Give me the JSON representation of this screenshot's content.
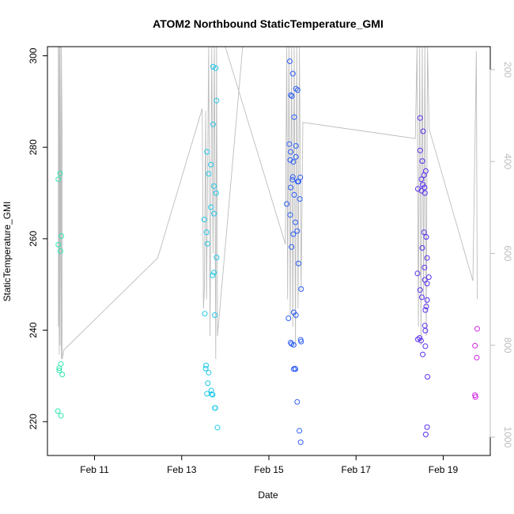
{
  "chart_data": {
    "type": "scatter",
    "title": "ATOM2 Northbound StaticTemperature_GMI",
    "xlabel": "Date",
    "ylabel": "StaticTemperature_GMI",
    "x_units": "days since 2016-02-10",
    "xlim": [
      -0.08,
      10.08
    ],
    "ylim": [
      212.6,
      302.0
    ],
    "y2lim": [
      1040,
      150
    ],
    "x_tick_labels": [
      "Feb 11",
      "Feb 13",
      "Feb 15",
      "Feb 17",
      "Feb 19"
    ],
    "y_tick_values": [
      220,
      240,
      260,
      280,
      300
    ],
    "y2_tick_values": [
      200,
      400,
      600,
      800,
      1000
    ],
    "grid": false,
    "legend": "none",
    "colors": {
      "axis": "#000000",
      "secondary_axis": "#bdbdbd",
      "pressure_line": "#bdbdbd"
    },
    "series": [
      {
        "color": "#2ee6b0",
        "points": [
          [
            0.17,
            273.0
          ],
          [
            0.21,
            274.3
          ],
          [
            0.17,
            258.7
          ],
          [
            0.22,
            257.3
          ],
          [
            0.24,
            260.6
          ],
          [
            0.19,
            231.7
          ],
          [
            0.19,
            231.2
          ],
          [
            0.23,
            232.6
          ],
          [
            0.26,
            230.3
          ],
          [
            0.16,
            222.3
          ],
          [
            0.23,
            221.3
          ]
        ]
      },
      {
        "color": "#1ec8e8",
        "points": [
          [
            3.72,
            297.6
          ],
          [
            3.78,
            297.3
          ],
          [
            3.72,
            285.0
          ],
          [
            3.8,
            290.2
          ],
          [
            3.58,
            279.0
          ],
          [
            3.62,
            274.2
          ],
          [
            3.67,
            276.2
          ],
          [
            3.74,
            271.5
          ],
          [
            3.79,
            270.0
          ],
          [
            3.67,
            266.9
          ],
          [
            3.74,
            265.5
          ],
          [
            3.52,
            264.2
          ],
          [
            3.57,
            261.4
          ],
          [
            3.59,
            258.9
          ],
          [
            3.8,
            255.9
          ],
          [
            3.71,
            252.0
          ],
          [
            3.74,
            252.6
          ],
          [
            3.53,
            243.6
          ],
          [
            3.76,
            243.3
          ],
          [
            3.56,
            232.3
          ],
          [
            3.55,
            231.6
          ],
          [
            3.62,
            230.7
          ],
          [
            3.6,
            228.4
          ],
          [
            3.58,
            226.1
          ],
          [
            3.68,
            226.8
          ],
          [
            3.71,
            225.9
          ],
          [
            3.69,
            226.0
          ],
          [
            3.77,
            223.0
          ],
          [
            3.76,
            223.0
          ],
          [
            3.82,
            218.7
          ]
        ]
      },
      {
        "color": "#2d5ef5",
        "points": [
          [
            5.48,
            298.8
          ],
          [
            5.55,
            296.1
          ],
          [
            5.66,
            292.5
          ],
          [
            5.62,
            292.8
          ],
          [
            5.5,
            291.4
          ],
          [
            5.53,
            291.2
          ],
          [
            5.58,
            286.6
          ],
          [
            5.47,
            280.7
          ],
          [
            5.62,
            280.3
          ],
          [
            5.5,
            279.0
          ],
          [
            5.56,
            276.8
          ],
          [
            5.49,
            277.2
          ],
          [
            5.62,
            277.9
          ],
          [
            5.55,
            273.5
          ],
          [
            5.54,
            272.9
          ],
          [
            5.66,
            272.5
          ],
          [
            5.68,
            272.5
          ],
          [
            5.72,
            273.4
          ],
          [
            5.5,
            271.2
          ],
          [
            5.58,
            269.6
          ],
          [
            5.71,
            268.7
          ],
          [
            5.41,
            267.6
          ],
          [
            5.49,
            265.2
          ],
          [
            5.61,
            263.6
          ],
          [
            5.65,
            261.7
          ],
          [
            5.56,
            261.0
          ],
          [
            5.52,
            258.2
          ],
          [
            5.68,
            254.6
          ],
          [
            5.74,
            249.0
          ],
          [
            5.57,
            243.9
          ],
          [
            5.62,
            243.3
          ],
          [
            5.45,
            242.6
          ],
          [
            5.5,
            237.3
          ],
          [
            5.52,
            237.0
          ],
          [
            5.57,
            236.8
          ],
          [
            5.73,
            237.9
          ],
          [
            5.74,
            237.5
          ],
          [
            5.57,
            231.5
          ],
          [
            5.61,
            231.5
          ],
          [
            5.6,
            231.6
          ],
          [
            5.65,
            224.3
          ],
          [
            5.7,
            218.0
          ],
          [
            5.73,
            215.5
          ]
        ]
      },
      {
        "color": "#5a2ef0",
        "points": [
          [
            8.47,
            286.4
          ],
          [
            8.54,
            283.5
          ],
          [
            8.47,
            279.3
          ],
          [
            8.52,
            277.0
          ],
          [
            8.6,
            274.8
          ],
          [
            8.56,
            273.9
          ],
          [
            8.5,
            273.0
          ],
          [
            8.53,
            271.8
          ],
          [
            8.57,
            271.2
          ],
          [
            8.42,
            270.9
          ],
          [
            8.5,
            270.5
          ],
          [
            8.58,
            270.0
          ],
          [
            8.56,
            261.4
          ],
          [
            8.61,
            260.4
          ],
          [
            8.52,
            258.0
          ],
          [
            8.63,
            255.8
          ],
          [
            8.57,
            253.7
          ],
          [
            8.41,
            252.4
          ],
          [
            8.67,
            251.6
          ],
          [
            8.58,
            251.0
          ],
          [
            8.63,
            250.2
          ],
          [
            8.47,
            248.8
          ],
          [
            8.51,
            247.2
          ],
          [
            8.63,
            246.6
          ],
          [
            8.61,
            245.2
          ],
          [
            8.59,
            244.4
          ],
          [
            8.58,
            241.0
          ],
          [
            8.59,
            239.9
          ],
          [
            8.42,
            238.0
          ],
          [
            8.46,
            238.3
          ],
          [
            8.49,
            237.7
          ],
          [
            8.59,
            236.5
          ],
          [
            8.53,
            234.7
          ],
          [
            8.64,
            229.8
          ],
          [
            8.63,
            218.8
          ],
          [
            8.6,
            217.2
          ]
        ]
      },
      {
        "color": "#d020e6",
        "points": [
          [
            9.78,
            240.3
          ],
          [
            9.73,
            236.6
          ],
          [
            9.77,
            234.0
          ],
          [
            9.73,
            225.8
          ],
          [
            9.74,
            225.4
          ]
        ]
      }
    ],
    "pressure_line": [
      [
        0.17,
        760
      ],
      [
        0.17,
        150
      ],
      [
        0.19,
        820
      ],
      [
        0.19,
        150
      ],
      [
        0.21,
        800
      ],
      [
        0.21,
        150
      ],
      [
        0.24,
        830
      ],
      [
        0.24,
        150
      ],
      [
        0.26,
        370
      ],
      [
        0.26,
        830
      ],
      [
        0.3,
        810
      ],
      [
        2.45,
        610
      ],
      [
        3.47,
        285
      ],
      [
        3.5,
        720
      ],
      [
        3.52,
        680
      ],
      [
        3.55,
        290
      ],
      [
        3.57,
        700
      ],
      [
        3.62,
        150
      ],
      [
        3.65,
        780
      ],
      [
        3.69,
        150
      ],
      [
        3.72,
        600
      ],
      [
        3.75,
        150
      ],
      [
        3.78,
        830
      ],
      [
        3.8,
        150
      ],
      [
        3.82,
        780
      ],
      [
        4.4,
        150
      ],
      [
        4.0,
        150
      ],
      [
        5.38,
        580
      ],
      [
        5.41,
        150
      ],
      [
        5.43,
        700
      ],
      [
        5.46,
        150
      ],
      [
        5.49,
        740
      ],
      [
        5.52,
        150
      ],
      [
        5.55,
        760
      ],
      [
        5.58,
        150
      ],
      [
        5.61,
        800
      ],
      [
        5.64,
        150
      ],
      [
        5.67,
        720
      ],
      [
        5.7,
        150
      ],
      [
        5.74,
        680
      ],
      [
        5.78,
        315
      ],
      [
        8.36,
        350
      ],
      [
        8.4,
        150
      ],
      [
        8.43,
        760
      ],
      [
        8.46,
        150
      ],
      [
        8.49,
        800
      ],
      [
        8.52,
        150
      ],
      [
        8.55,
        700
      ],
      [
        8.58,
        150
      ],
      [
        8.61,
        780
      ],
      [
        8.64,
        150
      ],
      [
        8.68,
        330
      ],
      [
        9.68,
        660
      ],
      [
        9.76,
        160
      ],
      [
        9.78,
        700
      ]
    ]
  }
}
